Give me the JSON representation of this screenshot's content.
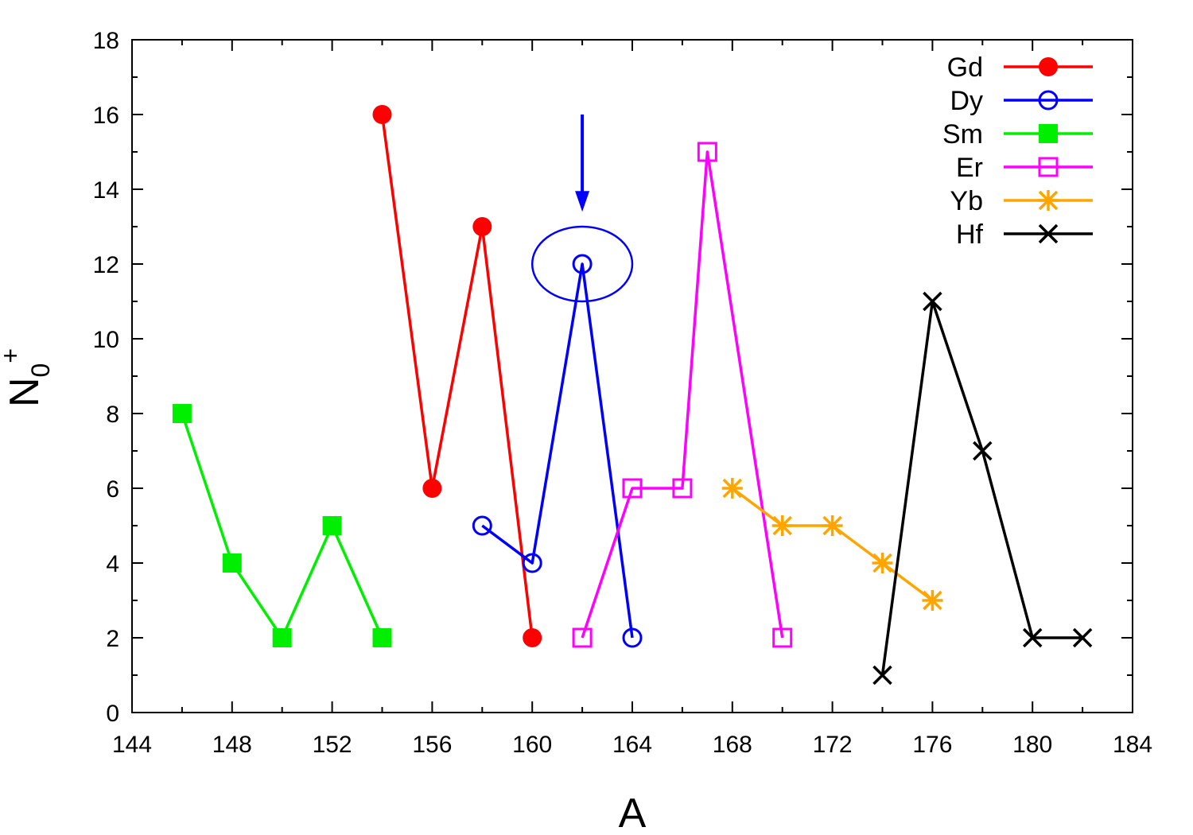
{
  "chart_data": {
    "type": "line",
    "xlabel": "A",
    "ylabel": {
      "main": "N",
      "sub": "0",
      "sup": "+"
    },
    "xlim": [
      144,
      184
    ],
    "ylim": [
      0,
      18
    ],
    "xticks": [
      144,
      148,
      152,
      156,
      160,
      164,
      168,
      172,
      176,
      180,
      184
    ],
    "yticks": [
      0,
      2,
      4,
      6,
      8,
      10,
      12,
      14,
      16,
      18
    ],
    "grid": false,
    "legend_position": "top-right",
    "series": [
      {
        "name": "Gd",
        "color": "#ff0000",
        "marker": "filled-circle",
        "x": [
          154,
          156,
          158,
          160
        ],
        "y": [
          16,
          6,
          13,
          2
        ]
      },
      {
        "name": "Dy",
        "color": "#0000ff",
        "marker": "open-circle",
        "x": [
          158,
          160,
          162,
          164
        ],
        "y": [
          5,
          4,
          12,
          2
        ]
      },
      {
        "name": "Sm",
        "color": "#00ee00",
        "marker": "filled-square",
        "x": [
          146,
          148,
          150,
          152,
          154
        ],
        "y": [
          8,
          4,
          2,
          5,
          2
        ]
      },
      {
        "name": "Er",
        "color": "#ff00ff",
        "marker": "open-square",
        "x": [
          162,
          164,
          166,
          167,
          170
        ],
        "y": [
          2,
          6,
          6,
          15,
          2
        ]
      },
      {
        "name": "Yb",
        "color": "#ffa500",
        "marker": "asterisk",
        "x": [
          168,
          170,
          172,
          174,
          176
        ],
        "y": [
          6,
          5,
          5,
          4,
          3
        ]
      },
      {
        "name": "Hf",
        "color": "#000000",
        "marker": "cross",
        "x": [
          174,
          176,
          178,
          180,
          182
        ],
        "y": [
          1,
          11,
          7,
          2,
          2
        ]
      }
    ],
    "annotations": [
      {
        "type": "ellipse",
        "color": "#0000ff",
        "cx": 162,
        "cy": 12,
        "rx": 2,
        "ry": 1
      }
    ],
    "arrows": [
      {
        "color": "#0000ff",
        "x": 162,
        "y_from": 16,
        "y_to": 13.4
      }
    ]
  }
}
